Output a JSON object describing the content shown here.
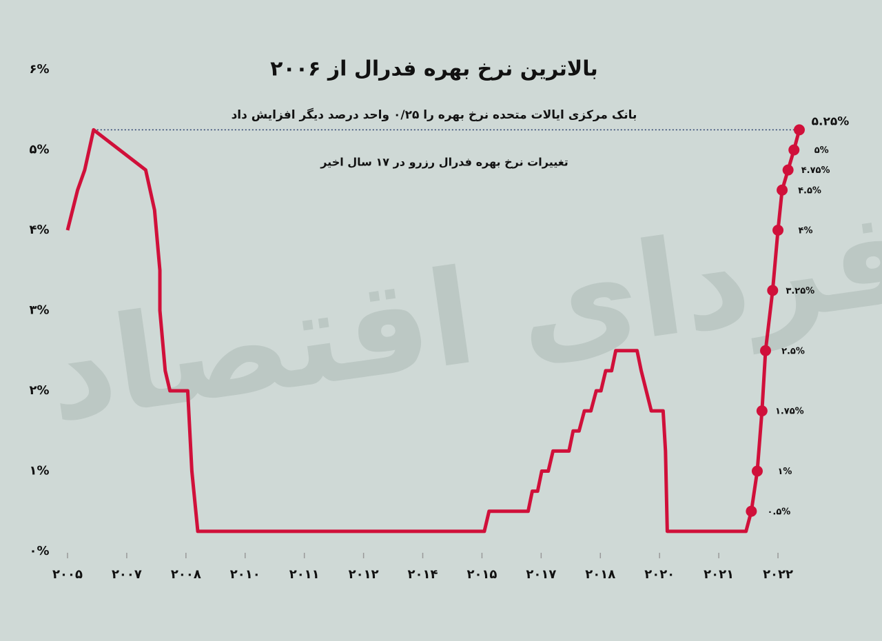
{
  "chart_data": {
    "type": "line",
    "title": "بالاترین نرخ بهره فدرال از ۲۰۰۶",
    "subtitle": "بانک مرکزی ایالات متحده نرخ بهره را ۰/۲۵ واحد درصد دیگر افزایش داد",
    "annotation": "تغییرات نرخ بهره فدرال رزرو در ۱۷ سال اخیر",
    "watermark": "فردای اقتصاد",
    "xlim": [
      0,
      12.5
    ],
    "xticks": [
      {
        "value": 0,
        "label": "۲۰۰۵"
      },
      {
        "value": 1,
        "label": "۲۰۰۷"
      },
      {
        "value": 2,
        "label": "۲۰۰۸"
      },
      {
        "value": 3,
        "label": "۲۰۱۰"
      },
      {
        "value": 4,
        "label": "۲۰۱۱"
      },
      {
        "value": 5,
        "label": "۲۰۱۲"
      },
      {
        "value": 6,
        "label": "۲۰۱۴"
      },
      {
        "value": 7,
        "label": "۲۰۱۵"
      },
      {
        "value": 8,
        "label": "۲۰۱۷"
      },
      {
        "value": 9,
        "label": "۲۰۱۸"
      },
      {
        "value": 10,
        "label": "۲۰۲۰"
      },
      {
        "value": 11,
        "label": "۲۰۲۱"
      },
      {
        "value": 12,
        "label": "۲۰۲۲"
      }
    ],
    "ylim": [
      0,
      6
    ],
    "yticks": [
      {
        "value": 0,
        "label": "۰%"
      },
      {
        "value": 1,
        "label": "۱%"
      },
      {
        "value": 2,
        "label": "۲%"
      },
      {
        "value": 3,
        "label": "۳%"
      },
      {
        "value": 4,
        "label": "۴%"
      },
      {
        "value": 5,
        "label": "۵%"
      },
      {
        "value": 6,
        "label": "۶%"
      }
    ],
    "hline": 5.25,
    "series": [
      {
        "color": "#d0103a",
        "x": [
          0,
          0.17,
          0.29,
          0.44,
          1.32,
          1.47,
          1.56,
          1.56,
          1.65,
          1.73,
          2.03,
          2.1,
          2.2,
          7.04,
          7.12,
          7.78,
          7.85,
          7.94,
          8.01,
          8.12,
          8.2,
          8.47,
          8.54,
          8.64,
          8.73,
          8.84,
          8.93,
          9.01,
          9.09,
          9.19,
          9.26,
          9.62,
          9.69,
          9.86,
          10.06,
          10.1,
          10.13,
          11.46,
          11.55,
          11.65,
          11.73,
          11.79,
          11.91,
          12.0,
          12.07,
          12.17,
          12.27,
          12.36
        ],
        "values": [
          4.0,
          4.5,
          4.75,
          5.25,
          4.75,
          4.25,
          3.5,
          3.0,
          2.25,
          2.0,
          2.0,
          1.0,
          0.25,
          0.25,
          0.5,
          0.5,
          0.75,
          0.75,
          1.0,
          1.0,
          1.25,
          1.25,
          1.5,
          1.5,
          1.75,
          1.75,
          2.0,
          2.0,
          2.25,
          2.25,
          2.5,
          2.5,
          2.25,
          1.75,
          1.75,
          1.25,
          0.25,
          0.25,
          0.5,
          1.0,
          1.75,
          2.5,
          3.25,
          4.0,
          4.5,
          4.75,
          5.0,
          5.25
        ]
      },
      {
        "color": "#d0103a",
        "x": [
          11.55,
          11.65,
          11.73,
          11.79,
          11.91,
          12.0,
          12.07,
          12.17,
          12.27,
          12.36
        ],
        "values": [
          0.5,
          1,
          1.75,
          2.5,
          3.25,
          4,
          4.5,
          4.75,
          5,
          5.25
        ],
        "value_labels": [
          "۰.۵%",
          "۱%",
          "۱.۷۵%",
          "۲.۵%",
          "۳.۲۵%",
          "۴%",
          "۴.۵%",
          "۴.۷۵%",
          "۵%",
          "۵.۲۵%"
        ]
      }
    ]
  }
}
